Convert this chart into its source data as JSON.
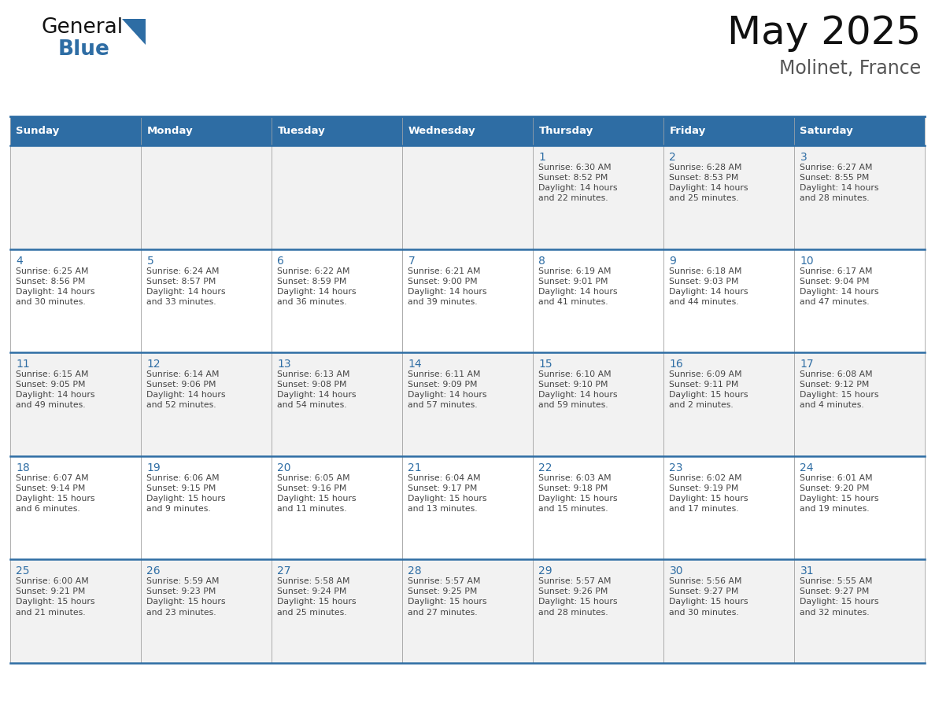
{
  "title": "May 2025",
  "subtitle": "Molinet, France",
  "header_bg": "#2E6DA4",
  "header_text_color": "#FFFFFF",
  "row_bg_light": "#F2F2F2",
  "row_bg_white": "#FFFFFF",
  "cell_border_color": "#AAAAAA",
  "blue_line_color": "#2E6DA4",
  "day_number_color": "#2E6DA4",
  "cell_text_color": "#444444",
  "days_of_week": [
    "Sunday",
    "Monday",
    "Tuesday",
    "Wednesday",
    "Thursday",
    "Friday",
    "Saturday"
  ],
  "calendar_data": [
    [
      "",
      "",
      "",
      "",
      "1\nSunrise: 6:30 AM\nSunset: 8:52 PM\nDaylight: 14 hours\nand 22 minutes.",
      "2\nSunrise: 6:28 AM\nSunset: 8:53 PM\nDaylight: 14 hours\nand 25 minutes.",
      "3\nSunrise: 6:27 AM\nSunset: 8:55 PM\nDaylight: 14 hours\nand 28 minutes."
    ],
    [
      "4\nSunrise: 6:25 AM\nSunset: 8:56 PM\nDaylight: 14 hours\nand 30 minutes.",
      "5\nSunrise: 6:24 AM\nSunset: 8:57 PM\nDaylight: 14 hours\nand 33 minutes.",
      "6\nSunrise: 6:22 AM\nSunset: 8:59 PM\nDaylight: 14 hours\nand 36 minutes.",
      "7\nSunrise: 6:21 AM\nSunset: 9:00 PM\nDaylight: 14 hours\nand 39 minutes.",
      "8\nSunrise: 6:19 AM\nSunset: 9:01 PM\nDaylight: 14 hours\nand 41 minutes.",
      "9\nSunrise: 6:18 AM\nSunset: 9:03 PM\nDaylight: 14 hours\nand 44 minutes.",
      "10\nSunrise: 6:17 AM\nSunset: 9:04 PM\nDaylight: 14 hours\nand 47 minutes."
    ],
    [
      "11\nSunrise: 6:15 AM\nSunset: 9:05 PM\nDaylight: 14 hours\nand 49 minutes.",
      "12\nSunrise: 6:14 AM\nSunset: 9:06 PM\nDaylight: 14 hours\nand 52 minutes.",
      "13\nSunrise: 6:13 AM\nSunset: 9:08 PM\nDaylight: 14 hours\nand 54 minutes.",
      "14\nSunrise: 6:11 AM\nSunset: 9:09 PM\nDaylight: 14 hours\nand 57 minutes.",
      "15\nSunrise: 6:10 AM\nSunset: 9:10 PM\nDaylight: 14 hours\nand 59 minutes.",
      "16\nSunrise: 6:09 AM\nSunset: 9:11 PM\nDaylight: 15 hours\nand 2 minutes.",
      "17\nSunrise: 6:08 AM\nSunset: 9:12 PM\nDaylight: 15 hours\nand 4 minutes."
    ],
    [
      "18\nSunrise: 6:07 AM\nSunset: 9:14 PM\nDaylight: 15 hours\nand 6 minutes.",
      "19\nSunrise: 6:06 AM\nSunset: 9:15 PM\nDaylight: 15 hours\nand 9 minutes.",
      "20\nSunrise: 6:05 AM\nSunset: 9:16 PM\nDaylight: 15 hours\nand 11 minutes.",
      "21\nSunrise: 6:04 AM\nSunset: 9:17 PM\nDaylight: 15 hours\nand 13 minutes.",
      "22\nSunrise: 6:03 AM\nSunset: 9:18 PM\nDaylight: 15 hours\nand 15 minutes.",
      "23\nSunrise: 6:02 AM\nSunset: 9:19 PM\nDaylight: 15 hours\nand 17 minutes.",
      "24\nSunrise: 6:01 AM\nSunset: 9:20 PM\nDaylight: 15 hours\nand 19 minutes."
    ],
    [
      "25\nSunrise: 6:00 AM\nSunset: 9:21 PM\nDaylight: 15 hours\nand 21 minutes.",
      "26\nSunrise: 5:59 AM\nSunset: 9:23 PM\nDaylight: 15 hours\nand 23 minutes.",
      "27\nSunrise: 5:58 AM\nSunset: 9:24 PM\nDaylight: 15 hours\nand 25 minutes.",
      "28\nSunrise: 5:57 AM\nSunset: 9:25 PM\nDaylight: 15 hours\nand 27 minutes.",
      "29\nSunrise: 5:57 AM\nSunset: 9:26 PM\nDaylight: 15 hours\nand 28 minutes.",
      "30\nSunrise: 5:56 AM\nSunset: 9:27 PM\nDaylight: 15 hours\nand 30 minutes.",
      "31\nSunrise: 5:55 AM\nSunset: 9:27 PM\nDaylight: 15 hours\nand 32 minutes."
    ]
  ],
  "logo_color_general": "#111111",
  "logo_color_blue": "#2E6DA4",
  "logo_triangle_color": "#2E6DA4"
}
